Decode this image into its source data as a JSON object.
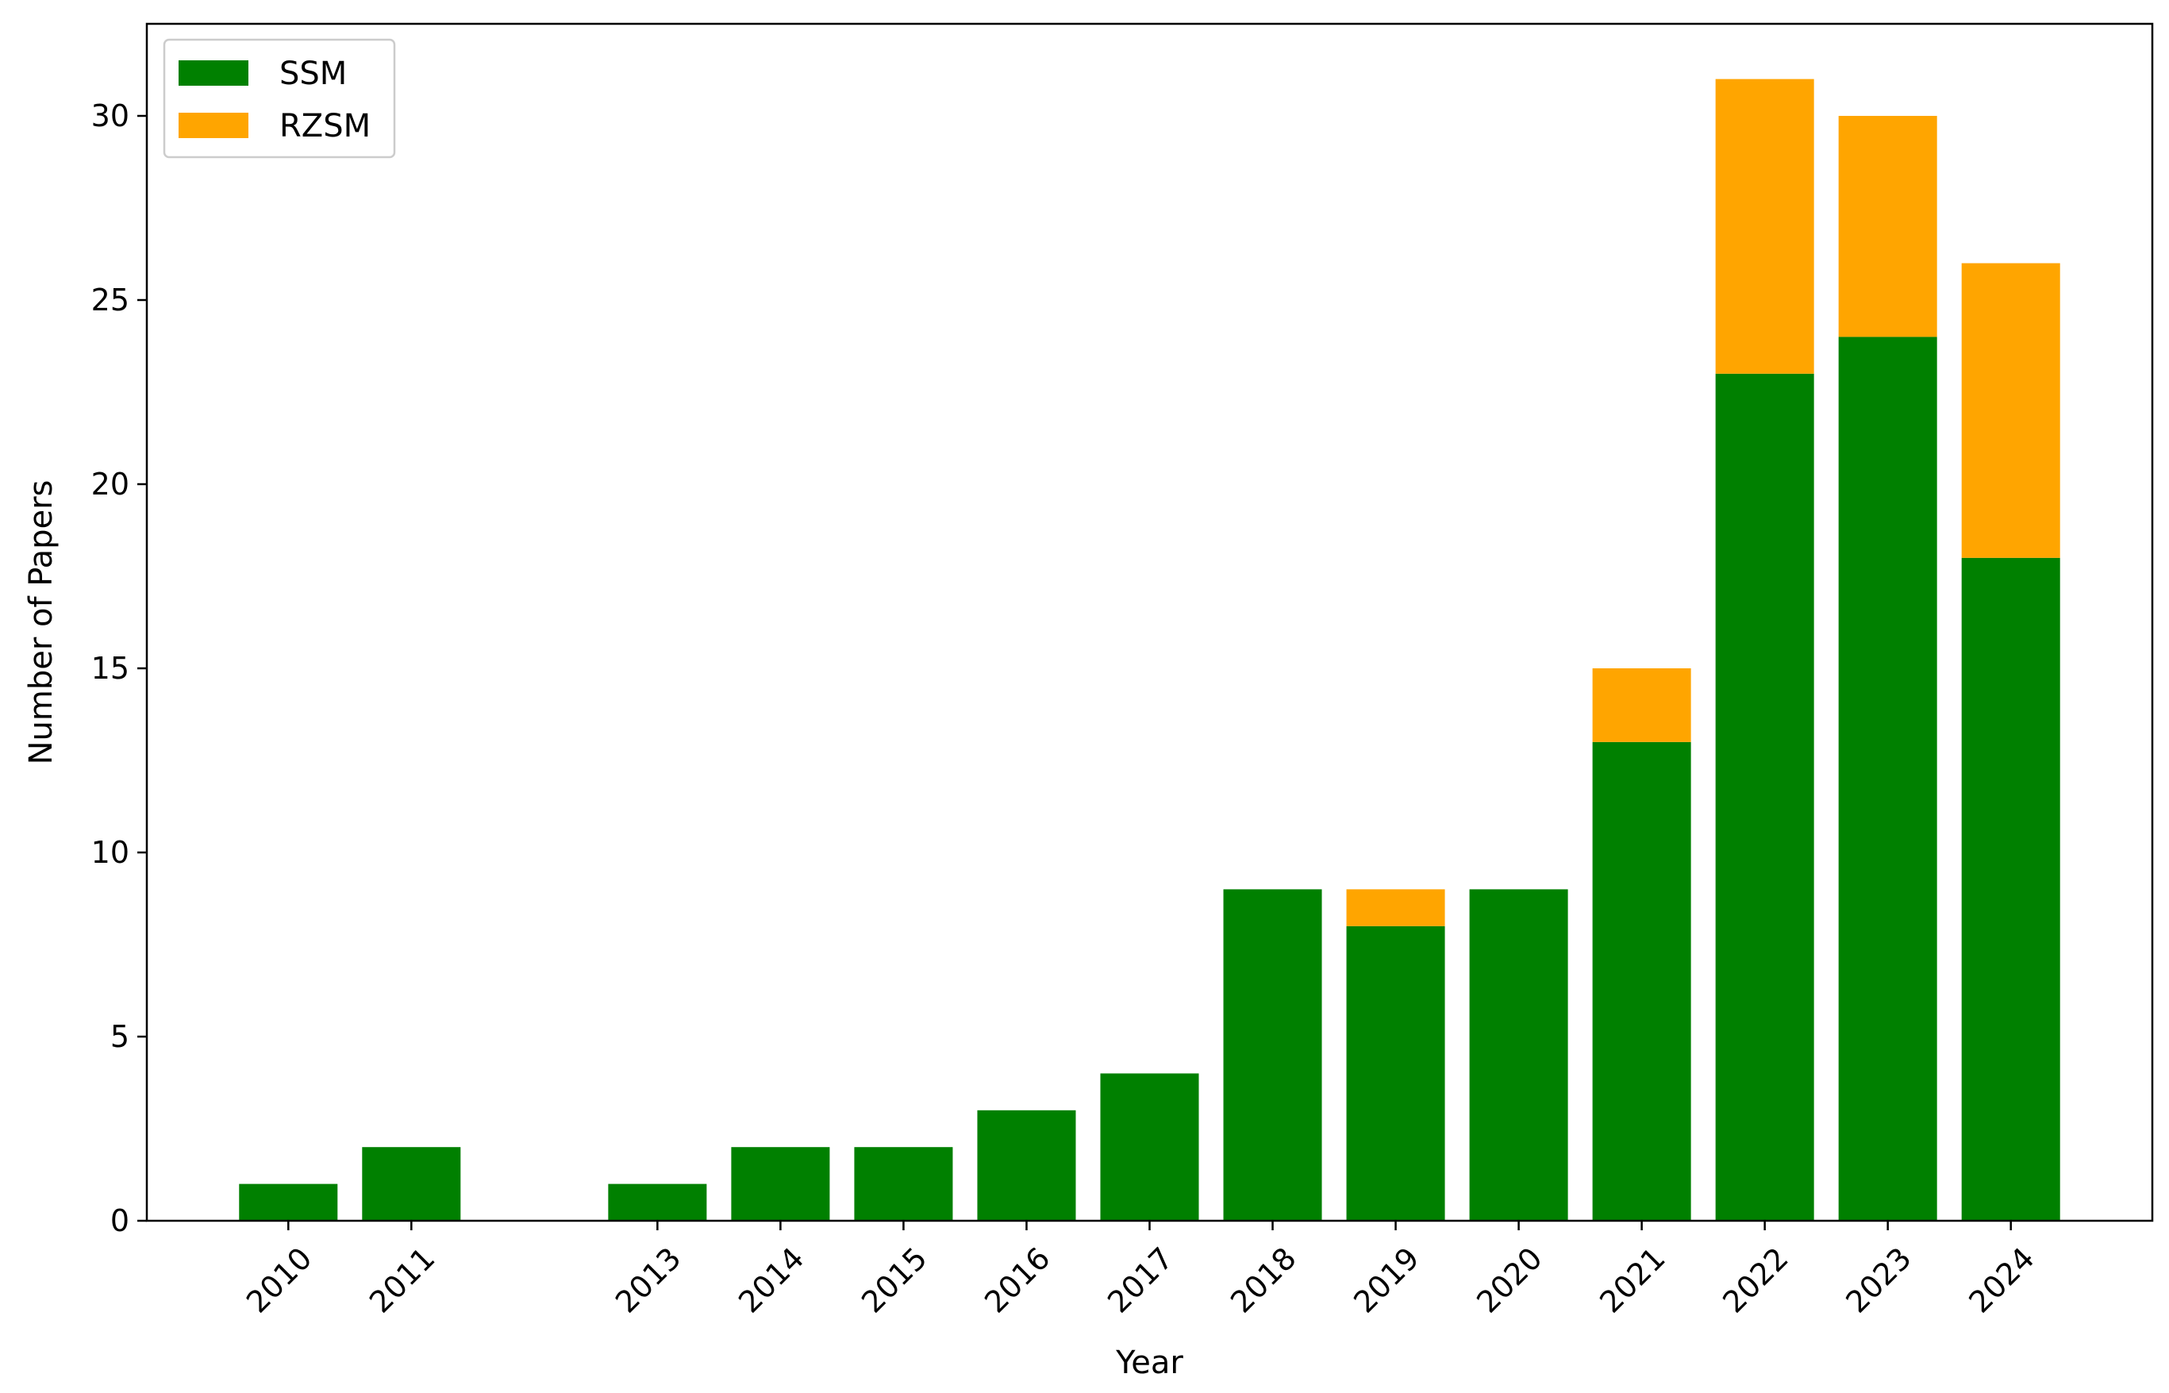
{
  "chart_data": {
    "type": "bar",
    "stacked": true,
    "xlabel": "Year",
    "ylabel": "Number of Papers",
    "ylim": [
      0,
      32.5
    ],
    "xlim": [
      2008.85,
      2025.15
    ],
    "yticks": [
      0,
      5,
      10,
      15,
      20,
      25,
      30
    ],
    "x": [
      2010,
      2011,
      2013,
      2014,
      2015,
      2016,
      2017,
      2018,
      2019,
      2020,
      2021,
      2022,
      2023,
      2024
    ],
    "categories": [
      "2010",
      "2011",
      "2013",
      "2014",
      "2015",
      "2016",
      "2017",
      "2018",
      "2019",
      "2020",
      "2021",
      "2022",
      "2023",
      "2024"
    ],
    "series": [
      {
        "name": "SSM",
        "color": "#008000",
        "values": [
          1,
          2,
          1,
          2,
          2,
          3,
          4,
          9,
          8,
          9,
          13,
          23,
          24,
          18
        ]
      },
      {
        "name": "RZSM",
        "color": "#FFA500",
        "values": [
          0,
          0,
          0,
          0,
          0,
          0,
          0,
          0,
          1,
          0,
          2,
          8,
          6,
          8
        ]
      }
    ],
    "legend_position": "top-left",
    "grid": false
  }
}
